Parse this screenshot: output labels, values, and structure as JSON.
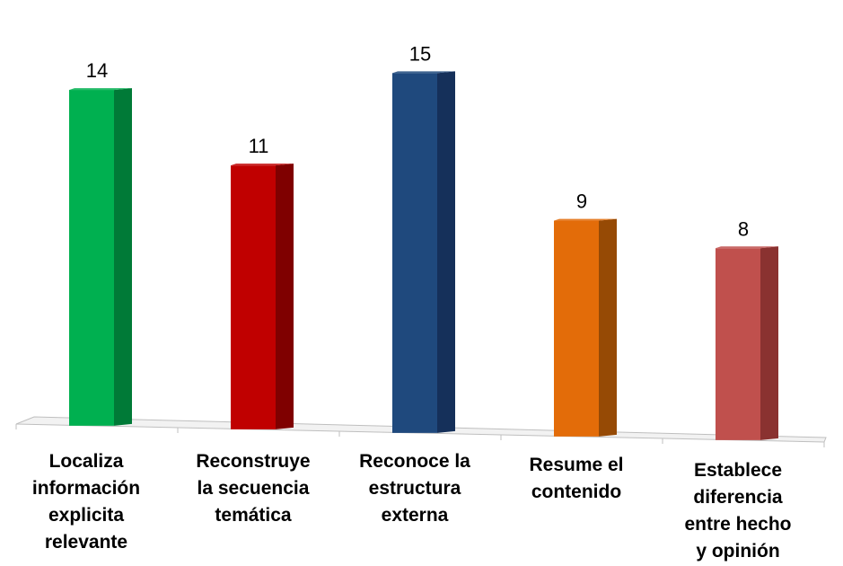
{
  "chart_data": {
    "type": "bar",
    "categories": [
      [
        "Localiza",
        "información",
        "explicita",
        "relevante"
      ],
      [
        "Reconstruye",
        "la secuencia",
        "temática"
      ],
      [
        "Reconoce la",
        "estructura",
        "externa"
      ],
      [
        "Resume el",
        "contenido"
      ],
      [
        "Establece",
        "diferencia",
        "entre hecho",
        "y opinión"
      ]
    ],
    "values": [
      14,
      11,
      15,
      9,
      8
    ],
    "value_labels": [
      "14",
      "11",
      "15",
      "9",
      "8"
    ],
    "colors": [
      "#00B050",
      "#C00000",
      "#1F497D",
      "#E36C09",
      "#C0504D"
    ],
    "side_colors": [
      "#007A37",
      "#7F0000",
      "#15305A",
      "#964A05",
      "#8A3230"
    ],
    "ylim": [
      0,
      16
    ],
    "grid": false,
    "title": "",
    "xlabel": "",
    "ylabel": ""
  }
}
